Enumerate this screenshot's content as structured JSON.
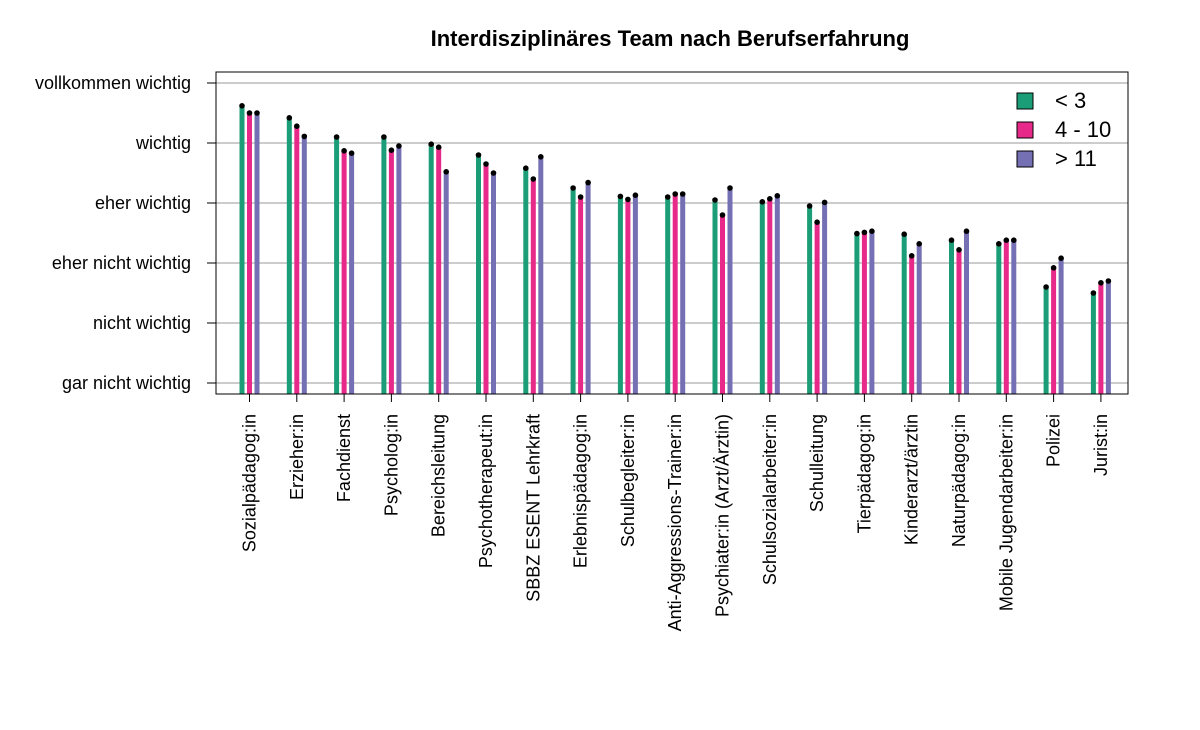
{
  "chart_data": {
    "type": "bar",
    "title": "Interdisziplinäres Team nach Berufserfahrung",
    "xlabel": "",
    "ylabel": "",
    "y_tick_labels": [
      "gar nicht wichtig",
      "nicht wichtig",
      "eher nicht wichtig",
      "eher wichtig",
      "wichtig",
      "vollkommen wichtig"
    ],
    "ylim": [
      1,
      6
    ],
    "grid": true,
    "legend_position": "top-right",
    "categories": [
      "Sozialpädagog:in",
      "Erzieher:in",
      "Fachdienst",
      "Psycholog:in",
      "Bereichsleitung",
      "Psychotherapeut:in",
      "SBBZ ESENT Lehrkraft",
      "Erlebnispädagog:in",
      "Schulbegleiter:in",
      "Anti-Aggressions-Trainer:in",
      "Psychiater:in (Arzt/Ärztin)",
      "Schulsozialarbeiter:in",
      "Schulleitung",
      "Tierpädagog:in",
      "Kinderarzt/ärztin",
      "Naturpädagog:in",
      "Mobile Jugendarbeiter:in",
      "Polizei",
      "Jurist:in"
    ],
    "series": [
      {
        "name": "< 3",
        "color": "#1b9e77",
        "values": [
          5.62,
          5.42,
          5.1,
          5.1,
          4.98,
          4.8,
          4.58,
          4.25,
          4.11,
          4.1,
          4.05,
          4.02,
          3.95,
          3.49,
          3.48,
          3.38,
          3.32,
          2.6,
          2.5
        ]
      },
      {
        "name": "4 - 10",
        "color": "#e7298a",
        "values": [
          5.5,
          5.28,
          4.87,
          4.88,
          4.93,
          4.65,
          4.4,
          4.1,
          4.06,
          4.15,
          3.8,
          4.07,
          3.68,
          3.51,
          3.12,
          3.22,
          3.38,
          2.92,
          2.67
        ]
      },
      {
        "name": "> 11",
        "color": "#7570b3",
        "values": [
          5.5,
          5.11,
          4.83,
          4.95,
          4.52,
          4.5,
          4.77,
          4.34,
          4.13,
          4.15,
          4.25,
          4.12,
          4.01,
          3.53,
          3.32,
          3.53,
          3.38,
          3.08,
          2.7
        ]
      }
    ]
  }
}
